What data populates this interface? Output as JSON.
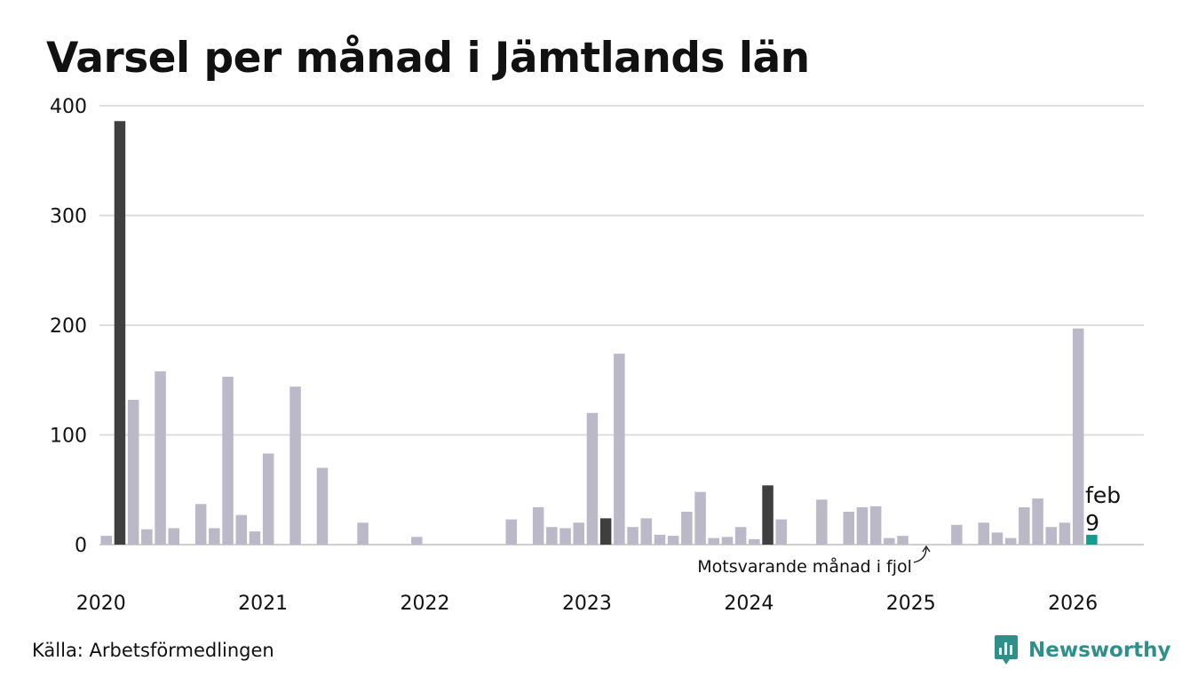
{
  "title": "Varsel per månad i Jämtlands län",
  "source": "Källa: Arbetsförmedlingen",
  "brand": {
    "name": "Newsworthy",
    "icon": "newsworthy-logo-icon"
  },
  "colors": {
    "bar": "#bbb8c7",
    "same_month": "#3f3f3f",
    "current": "#1a9a8c",
    "grid": "#dddddd",
    "brand": "#2f8f89"
  },
  "chart_data": {
    "type": "bar",
    "title": "Varsel per månad i Jämtlands län",
    "xlabel": "",
    "ylabel": "",
    "ylim": [
      0,
      400
    ],
    "yticks": [
      0,
      100,
      200,
      300,
      400
    ],
    "xtick_labels": [
      "2020",
      "2021",
      "2022",
      "2023",
      "2024",
      "2025",
      "2026"
    ],
    "grid": true,
    "start": "2020-01",
    "highlight_months": [
      "feb"
    ],
    "values": [
      8,
      386,
      132,
      14,
      158,
      15,
      0,
      37,
      15,
      153,
      27,
      12,
      83,
      0,
      144,
      0,
      70,
      0,
      0,
      20,
      0,
      0,
      0,
      7,
      0,
      0,
      0,
      0,
      0,
      0,
      23,
      0,
      34,
      16,
      15,
      20,
      120,
      24,
      174,
      16,
      24,
      9,
      8,
      30,
      48,
      6,
      7,
      16,
      5,
      54,
      23,
      0,
      0,
      41,
      0,
      30,
      34,
      35,
      6,
      8,
      0,
      0,
      0,
      18,
      0,
      20,
      11,
      6,
      34,
      42,
      16,
      20,
      197,
      9
    ],
    "current": {
      "label": "feb",
      "value": 9,
      "value_text": "9"
    },
    "annotation": "Motsvarande månad i fjol"
  }
}
